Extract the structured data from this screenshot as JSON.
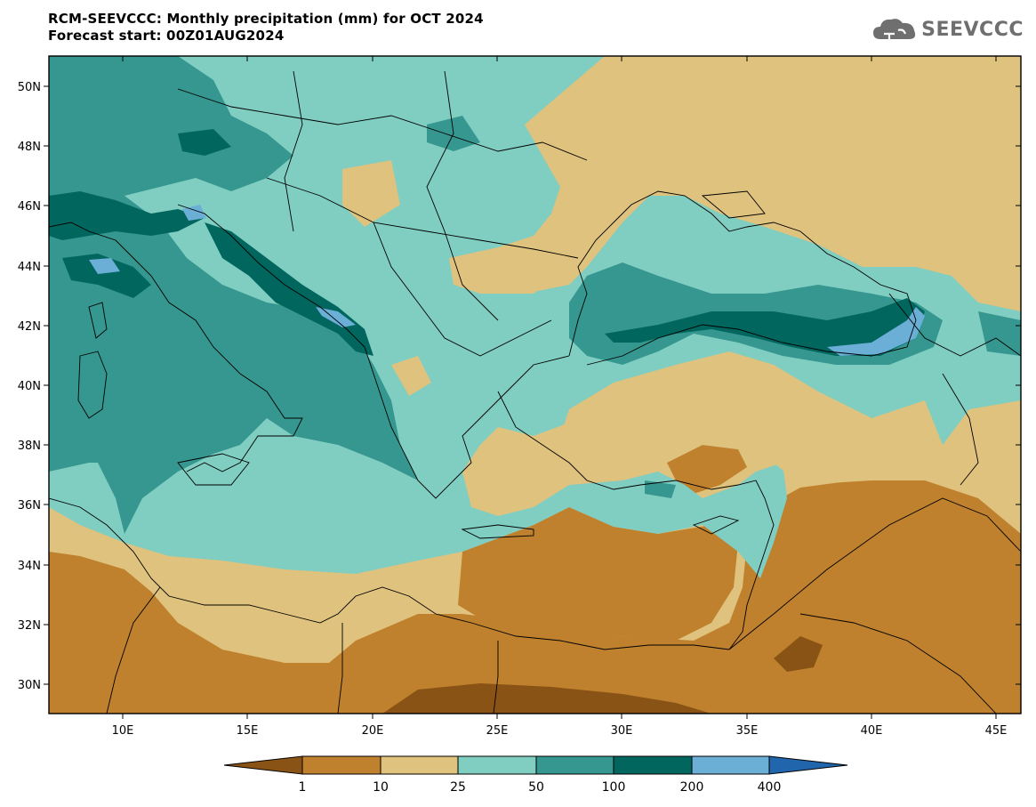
{
  "header": {
    "title_line1": "RCM-SEEVCCC: Monthly precipitation (mm) for OCT 2024",
    "title_line2": "Forecast start: 00Z01AUG2024",
    "logo_text": "SEEVCCC",
    "logo_icon": "cloud-icon"
  },
  "map": {
    "lat_labels": [
      "50N",
      "48N",
      "46N",
      "44N",
      "42N",
      "40N",
      "38N",
      "36N",
      "34N",
      "32N",
      "30N"
    ],
    "lon_labels": [
      "10E",
      "15E",
      "20E",
      "25E",
      "30E",
      "35E",
      "40E",
      "45E"
    ]
  },
  "colorbar": {
    "labels": [
      "1",
      "10",
      "25",
      "50",
      "100",
      "200",
      "400"
    ],
    "colors": {
      "lt1": "#8a5316",
      "c1_10": "#bf812d",
      "c10_25": "#dfc27d",
      "c25_50": "#80cdc1",
      "c50_100": "#35978f",
      "c100_200": "#01665e",
      "c200_400": "#6baed6",
      "gt400": "#2166ac"
    }
  }
}
